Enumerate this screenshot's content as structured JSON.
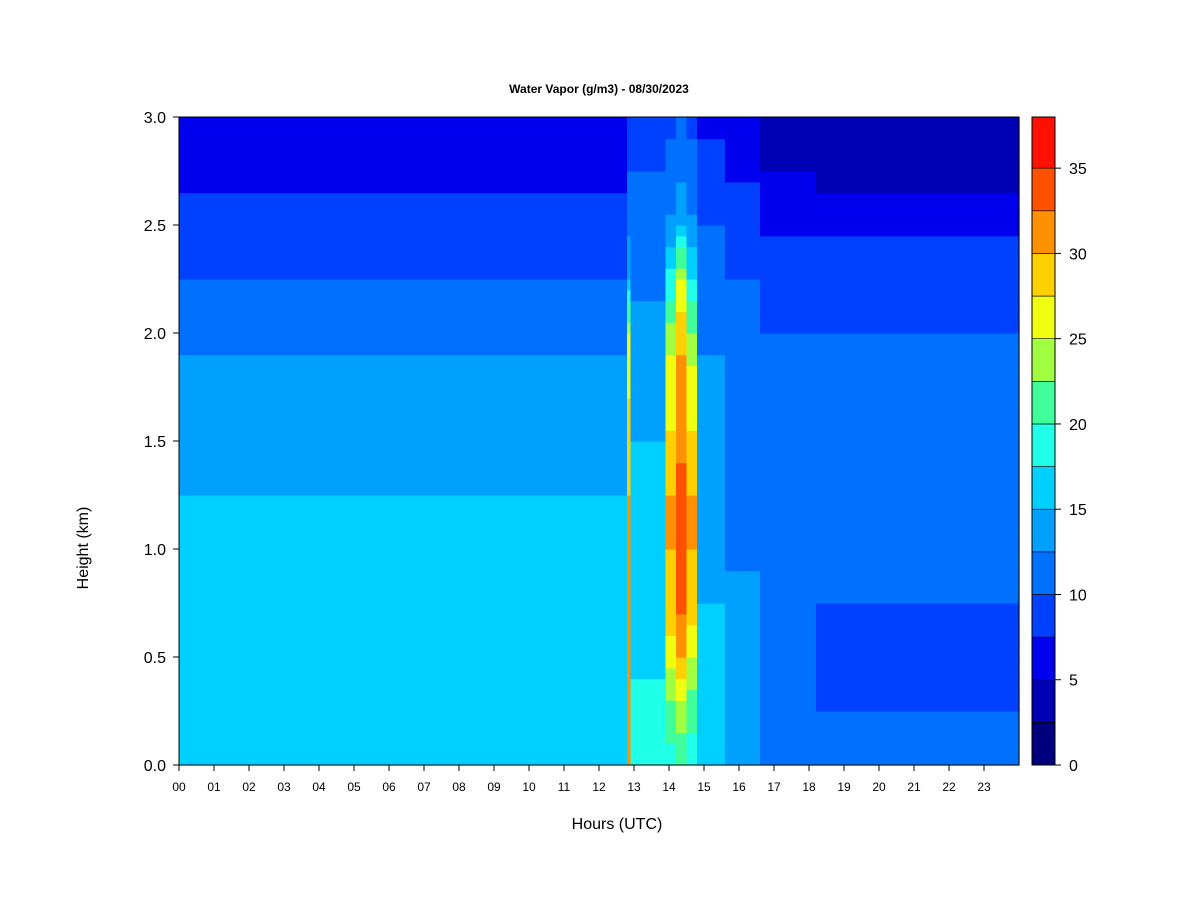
{
  "chart_data": {
    "type": "heatmap",
    "title": "Water Vapor (g/m3) - 08/30/2023",
    "xlabel": "Hours (UTC)",
    "ylabel": "Height (km)",
    "xlim": [
      0,
      24
    ],
    "ylim": [
      0,
      3.0
    ],
    "x_ticks": [
      "00",
      "01",
      "02",
      "03",
      "04",
      "05",
      "06",
      "07",
      "08",
      "09",
      "10",
      "11",
      "12",
      "13",
      "14",
      "15",
      "16",
      "17",
      "18",
      "19",
      "20",
      "21",
      "22",
      "23"
    ],
    "y_ticks": [
      "0.0",
      "0.5",
      "1.0",
      "1.5",
      "2.0",
      "2.5",
      "3.0"
    ],
    "colorbar": {
      "range": [
        0,
        38
      ],
      "ticks": [
        "0",
        "5",
        "10",
        "15",
        "20",
        "25",
        "30",
        "35"
      ],
      "levels": [
        0,
        2.5,
        5,
        7.5,
        10,
        12.5,
        15,
        17.5,
        20,
        22.5,
        25,
        27.5,
        30,
        32.5,
        35,
        38
      ],
      "colors": [
        "#00007f",
        "#0000b4",
        "#0000ee",
        "#0040ff",
        "#0070ff",
        "#00a0ff",
        "#00d0ff",
        "#20ffe8",
        "#40ff9a",
        "#a0ff40",
        "#f0ff10",
        "#ffd000",
        "#ff9000",
        "#ff5000",
        "#ff1000",
        "#c00000",
        "#7f0000"
      ]
    },
    "profiles": [
      {
        "from": 0,
        "to": 12.8,
        "values": [
          17,
          17,
          17,
          16,
          16,
          15,
          14,
          13,
          12,
          10,
          8,
          7,
          6.5
        ]
      },
      {
        "from": 12.8,
        "to": 12.9,
        "values": [
          31,
          31,
          31,
          31,
          31,
          30,
          29,
          27,
          25,
          15,
          12,
          10,
          8
        ]
      },
      {
        "from": 12.9,
        "to": 13.9,
        "values": [
          19,
          18,
          17,
          17,
          17,
          16,
          15,
          14,
          13,
          12,
          11,
          10,
          9
        ]
      },
      {
        "from": 13.9,
        "to": 14.2,
        "values": [
          19,
          22,
          26,
          29,
          30,
          30,
          28,
          26,
          24,
          18,
          13,
          11,
          9
        ]
      },
      {
        "from": 14.2,
        "to": 14.5,
        "values": [
          20,
          24,
          30,
          33,
          35,
          33,
          32,
          31,
          29,
          25,
          15,
          12,
          10
        ]
      },
      {
        "from": 14.5,
        "to": 14.8,
        "values": [
          18,
          21,
          25,
          29,
          30,
          30,
          28,
          26,
          23,
          17,
          13,
          11,
          9
        ]
      },
      {
        "from": 14.8,
        "to": 15.6,
        "values": [
          16,
          16,
          15,
          15,
          14,
          14,
          13,
          13,
          12,
          11,
          10,
          8,
          7
        ]
      },
      {
        "from": 15.6,
        "to": 16.6,
        "values": [
          15,
          14,
          13,
          13,
          12,
          12,
          12,
          12,
          11,
          10,
          9,
          7,
          5
        ]
      },
      {
        "from": 16.6,
        "to": 18.2,
        "values": [
          12,
          11,
          11,
          11,
          11,
          11,
          11,
          11,
          10,
          9,
          7,
          5,
          4
        ]
      },
      {
        "from": 18.2,
        "to": 24,
        "values": [
          11,
          10,
          9,
          10,
          11,
          11,
          11,
          11,
          10,
          9,
          7,
          4,
          3
        ]
      }
    ]
  }
}
